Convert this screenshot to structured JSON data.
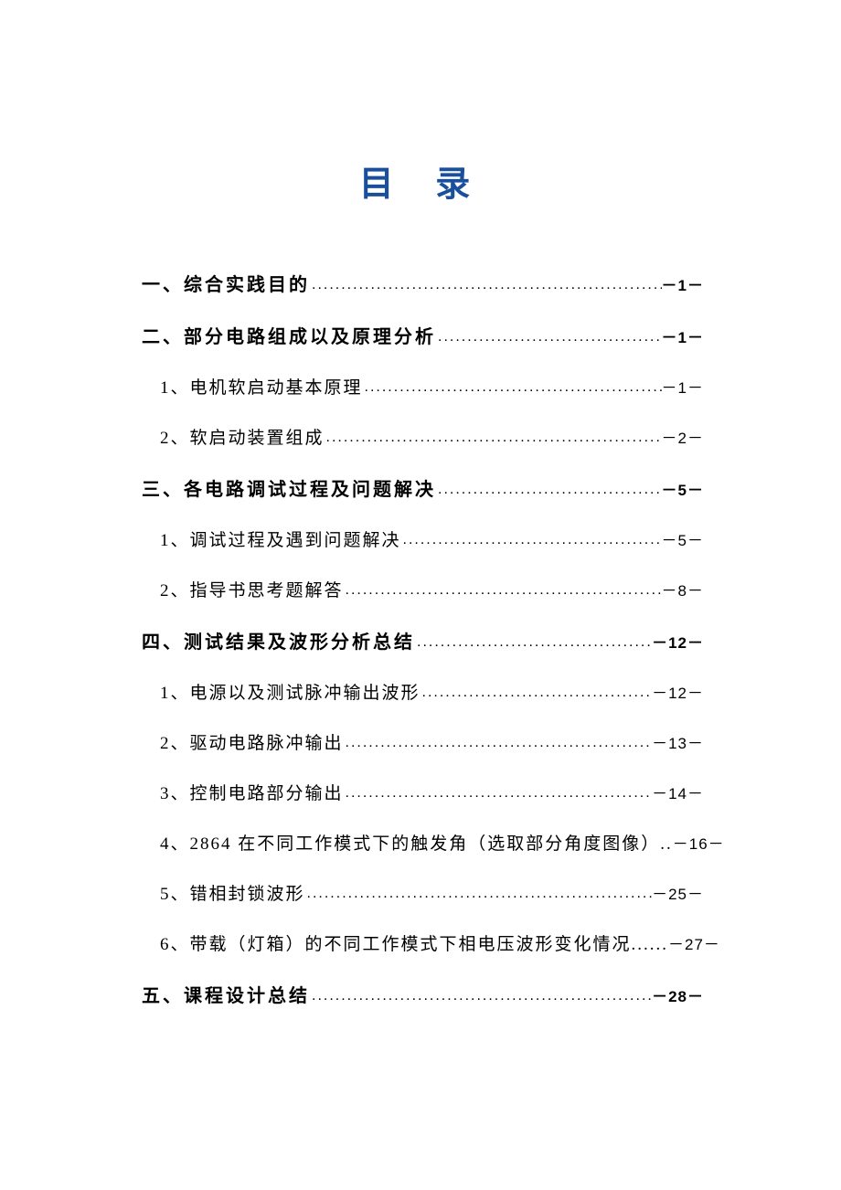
{
  "title": "目 录",
  "title_color": "#1a4f9c",
  "text_color": "#000000",
  "background_color": "#ffffff",
  "font_family": "KaiTi",
  "title_fontsize": 38,
  "level1_fontsize": 20,
  "level2_fontsize": 19,
  "sections": [
    {
      "label": "一、综合实践目的",
      "page": "－1－",
      "level": 1,
      "children": []
    },
    {
      "label": "二、部分电路组成以及原理分析",
      "page": "－1－",
      "level": 1,
      "children": [
        {
          "label": "1、电机软启动基本原理",
          "page": "－1－",
          "level": 2
        },
        {
          "label": "2、软启动装置组成",
          "page": "－2－",
          "level": 2
        }
      ]
    },
    {
      "label": "三、各电路调试过程及问题解决",
      "page": "－5－",
      "level": 1,
      "children": [
        {
          "label": "1、调试过程及遇到问题解决",
          "page": "－5－",
          "level": 2
        },
        {
          "label": "2、指导书思考题解答",
          "page": "－8－",
          "level": 2
        }
      ]
    },
    {
      "label": "四、测试结果及波形分析总结",
      "page": "－12－",
      "level": 1,
      "children": [
        {
          "label": "1、电源以及测试脉冲输出波形",
          "page": "－12－",
          "level": 2
        },
        {
          "label": "2、驱动电路脉冲输出",
          "page": "－13－",
          "level": 2
        },
        {
          "label": "3、控制电路部分输出",
          "page": "－14－",
          "level": 2
        },
        {
          "label": "4、2864 在不同工作模式下的触发角（选取部分角度图像）..",
          "page": "－16－",
          "level": 2,
          "nodots": true
        },
        {
          "label": "5、错相封锁波形",
          "page": "－25－",
          "level": 2
        },
        {
          "label": "6、带载（灯箱）的不同工作模式下相电压波形变化情况......",
          "page": "－27－",
          "level": 2,
          "nodots": true
        }
      ]
    },
    {
      "label": "五、课程设计总结",
      "page": "－28－",
      "level": 1,
      "children": []
    }
  ]
}
